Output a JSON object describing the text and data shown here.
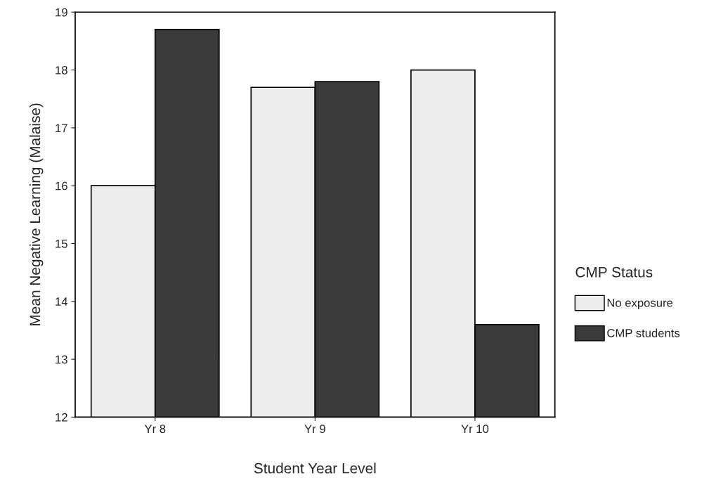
{
  "chart_data": {
    "type": "bar",
    "xlabel": "Student Year Level",
    "ylabel": "Mean Negative Learning (Malaise)",
    "legend_title": "CMP Status",
    "categories": [
      "Yr 8",
      "Yr 9",
      "Yr 10"
    ],
    "series": [
      {
        "name": "No exposure",
        "color": "#ececec",
        "values": [
          16.0,
          17.7,
          18.0
        ]
      },
      {
        "name": "CMP students",
        "color": "#3a3a3a",
        "values": [
          18.7,
          17.8,
          13.6
        ]
      }
    ],
    "ylim": [
      12,
      19
    ],
    "yticks": [
      12,
      13,
      14,
      15,
      16,
      17,
      18,
      19
    ],
    "grid": false,
    "legend": "right"
  }
}
